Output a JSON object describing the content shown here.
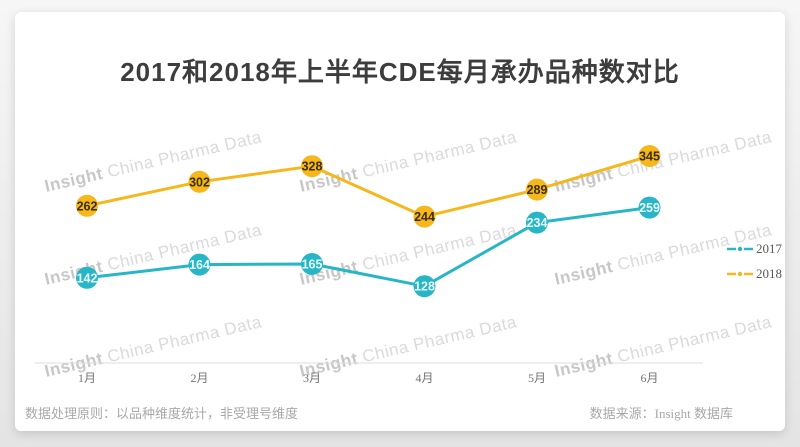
{
  "page": {
    "footer_left": "数据处理原则：以品种维度统计，非受理号维度",
    "footer_right": "数据来源：Insight 数据库"
  },
  "watermark": {
    "brand": "Insight",
    "rest": "China Pharma Data"
  },
  "chart_data": {
    "type": "line",
    "title": "2017和2018年上半年CDE每月承办品种数对比",
    "categories": [
      "1月",
      "2月",
      "3月",
      "4月",
      "5月",
      "6月"
    ],
    "series": [
      {
        "name": "2017",
        "values": [
          142,
          164,
          165,
          128,
          234,
          259
        ],
        "color": "#28b6c6",
        "label_text_color": "#e8fbff"
      },
      {
        "name": "2018",
        "values": [
          262,
          302,
          328,
          244,
          289,
          345
        ],
        "color": "#f6b71d",
        "label_text_color": "#3a2e00"
      }
    ],
    "point_labels_visible": true,
    "grid": false,
    "legend_position": "right",
    "ylim": [
      0,
      430
    ],
    "colors": {
      "axis_line": "#dcdcdc",
      "tick_label": "#757575",
      "legend_label": "#595959",
      "title": "#3d3d3d",
      "watermark_brand": "#c7c7c7",
      "watermark_rest": "#dadada"
    }
  }
}
